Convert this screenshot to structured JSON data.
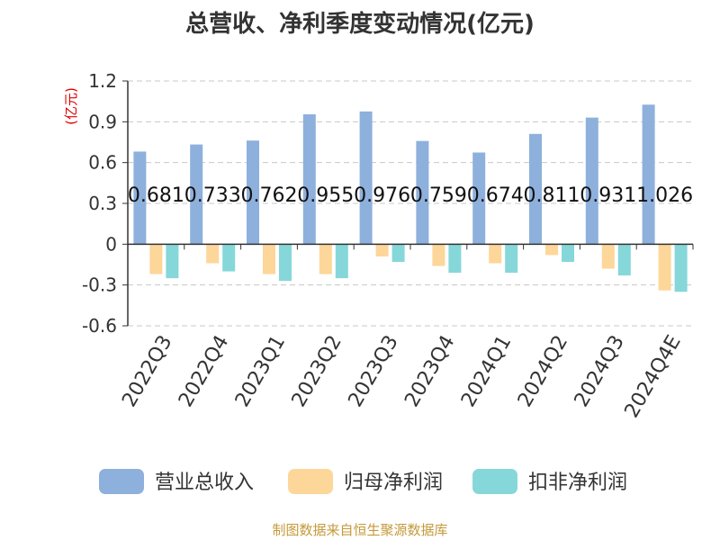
{
  "title": "总营收、净利季度变动情况(亿元)",
  "source": "制图数据来自恒生聚源数据库",
  "chart_data": {
    "type": "bar",
    "title": "总营收、净利季度变动情况(亿元)",
    "ylabel": "(亿元)",
    "xlabel": "",
    "ylim": [
      -0.6,
      1.2
    ],
    "yticks": [
      -0.6,
      -0.3,
      0,
      0.3,
      0.6,
      0.9,
      1.2
    ],
    "ytick_labels": [
      "-0.6",
      "-0.3",
      "0",
      "0.3",
      "0.6",
      "0.9",
      "1.2"
    ],
    "grid": true,
    "legend_position": "bottom",
    "categories": [
      "2022Q3",
      "2022Q4",
      "2023Q1",
      "2023Q2",
      "2023Q3",
      "2023Q4",
      "2024Q1",
      "2024Q2",
      "2024Q3",
      "2024Q4E"
    ],
    "series": [
      {
        "name": "营业总收入",
        "color": "#8eb0dc",
        "values": [
          0.681,
          0.733,
          0.762,
          0.955,
          0.976,
          0.759,
          0.674,
          0.811,
          0.931,
          1.026
        ],
        "labels": [
          "0.681",
          "0.733",
          "0.762",
          "0.955",
          "0.976",
          "0.759",
          "0.674",
          "0.811",
          "0.931",
          "1.026"
        ]
      },
      {
        "name": "归母净利润",
        "color": "#fdd699",
        "values": [
          -0.22,
          -0.14,
          -0.22,
          -0.22,
          -0.09,
          -0.16,
          -0.14,
          -0.08,
          -0.18,
          -0.34
        ]
      },
      {
        "name": "扣非净利润",
        "color": "#86d7d9",
        "values": [
          -0.25,
          -0.2,
          -0.27,
          -0.25,
          -0.13,
          -0.21,
          -0.21,
          -0.13,
          -0.23,
          -0.35
        ]
      }
    ]
  }
}
